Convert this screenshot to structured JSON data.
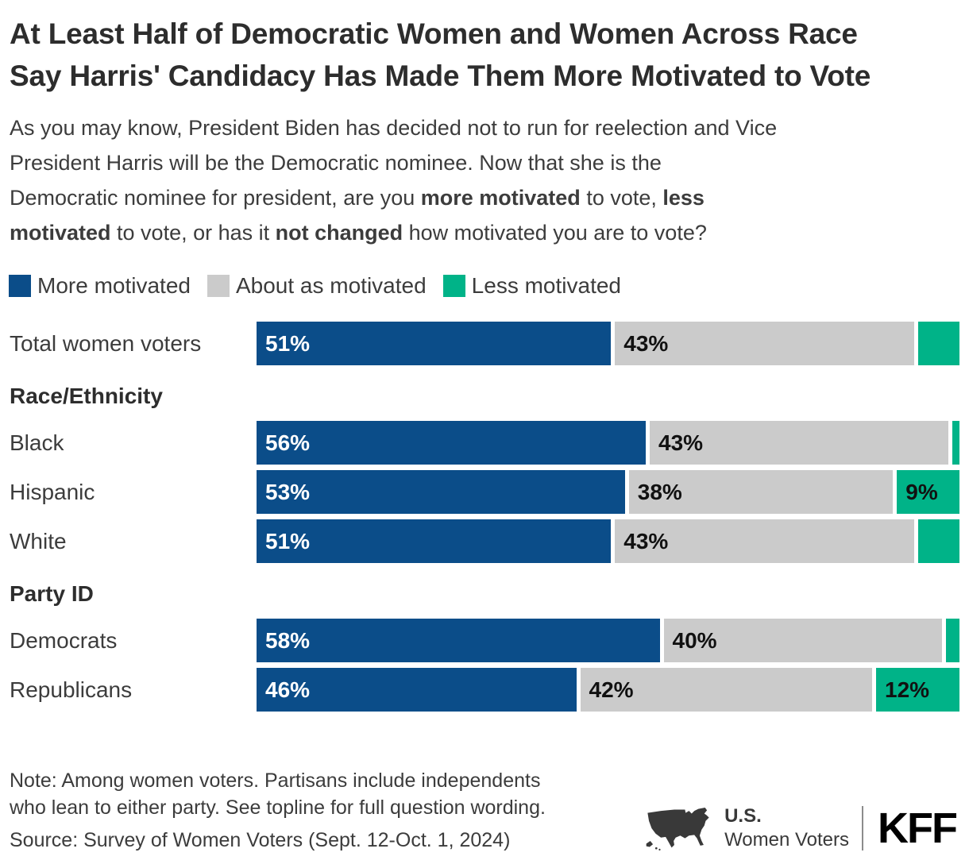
{
  "title": {
    "line1": "At Least Half of Democratic Women and Women Across Race",
    "line2": "Say Harris' Candidacy Has Made Them More Motivated to Vote"
  },
  "subtitle_lines": [
    [
      {
        "t": "As you may know, President Biden has decided not to run for reelection and Vice",
        "b": false
      }
    ],
    [
      {
        "t": "President Harris will be the Democratic nominee. Now that she is the",
        "b": false
      }
    ],
    [
      {
        "t": "Democratic nominee for president, are you ",
        "b": false
      },
      {
        "t": "more motivated",
        "b": true
      },
      {
        "t": " to vote, ",
        "b": false
      },
      {
        "t": "less",
        "b": true
      }
    ],
    [
      {
        "t": "motivated",
        "b": true
      },
      {
        "t": " to vote, or has it ",
        "b": false
      },
      {
        "t": "not changed",
        "b": true
      },
      {
        "t": " how motivated you are to vote?",
        "b": false
      }
    ]
  ],
  "chart_data": {
    "type": "bar",
    "orientation": "horizontal_stacked",
    "unit": "percent",
    "xlim": [
      0,
      100
    ],
    "legend_position": "top",
    "series": [
      {
        "name": "More motivated",
        "color": "#0b4d89"
      },
      {
        "name": "About as motivated",
        "color": "#cbcbcb"
      },
      {
        "name": "Less motivated",
        "color": "#00b388"
      }
    ],
    "rows": [
      {
        "type": "bar",
        "label": "Total women voters",
        "values": [
          51,
          43,
          6
        ],
        "value_labels": [
          "51%",
          "43%",
          ""
        ]
      },
      {
        "type": "section",
        "label": "Race/Ethnicity"
      },
      {
        "type": "bar",
        "label": "Black",
        "values": [
          56,
          43,
          1
        ],
        "value_labels": [
          "56%",
          "43%",
          ""
        ]
      },
      {
        "type": "bar",
        "label": "Hispanic",
        "values": [
          53,
          38,
          9
        ],
        "value_labels": [
          "53%",
          "38%",
          "9%"
        ]
      },
      {
        "type": "bar",
        "label": "White",
        "values": [
          51,
          43,
          6
        ],
        "value_labels": [
          "51%",
          "43%",
          ""
        ]
      },
      {
        "type": "section",
        "label": "Party ID"
      },
      {
        "type": "bar",
        "label": "Democrats",
        "values": [
          58,
          40,
          2
        ],
        "value_labels": [
          "58%",
          "40%",
          ""
        ]
      },
      {
        "type": "bar",
        "label": "Republicans",
        "values": [
          46,
          42,
          12
        ],
        "value_labels": [
          "46%",
          "42%",
          "12%"
        ]
      }
    ]
  },
  "note": {
    "line1": "Note: Among women voters. Partisans include independents",
    "line2": "who lean to either party. See topline for full question wording."
  },
  "source": "Source: Survey of Women Voters (Sept. 12-Oct. 1, 2024)",
  "footer": {
    "program_top": "U.S.",
    "program_bottom": "Women Voters",
    "brand": "KFF",
    "map_icon": "us-map-icon"
  },
  "colors": {
    "more_motivated": "#0b4d89",
    "about_as_motivated": "#cbcbcb",
    "less_motivated": "#00b388",
    "title_text": "#2d2d2d",
    "body_text": "#3c3c3c"
  }
}
